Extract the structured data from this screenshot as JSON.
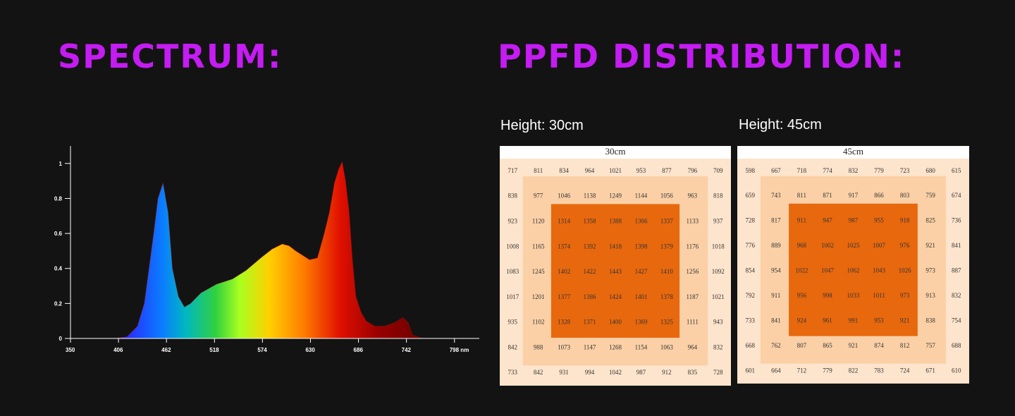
{
  "headings": [
    "SPECTRUM:",
    "PPFD DISTRIBUTION:"
  ],
  "chart_data": {
    "type": "area",
    "x": [
      350,
      400,
      416,
      428,
      436,
      447,
      452,
      458,
      464,
      469,
      476,
      483,
      490,
      502,
      520,
      539,
      555,
      572,
      585,
      597,
      605,
      613,
      629,
      638,
      646,
      652,
      658,
      663,
      667,
      671,
      675,
      679,
      683,
      689,
      695,
      705,
      716,
      728,
      738,
      744,
      749,
      755,
      761,
      798
    ],
    "values": [
      0,
      0,
      0.01,
      0.07,
      0.2,
      0.6,
      0.8,
      0.89,
      0.72,
      0.4,
      0.24,
      0.18,
      0.2,
      0.26,
      0.31,
      0.34,
      0.39,
      0.46,
      0.51,
      0.54,
      0.53,
      0.5,
      0.45,
      0.46,
      0.6,
      0.72,
      0.89,
      0.97,
      1.01,
      0.9,
      0.73,
      0.45,
      0.24,
      0.15,
      0.1,
      0.07,
      0.07,
      0.09,
      0.12,
      0.09,
      0.02,
      0.01,
      0,
      0
    ],
    "xlim": [
      350,
      827
    ],
    "ylim": [
      0,
      1.1
    ],
    "xticks": [
      350,
      406,
      462,
      518,
      574,
      630,
      686,
      742,
      {
        "value": 798,
        "label": "798 nm"
      }
    ],
    "yticks": [
      0,
      0.2,
      0.4,
      0.6,
      0.8,
      1
    ]
  },
  "tables": [
    {
      "title": "Height: 30cm",
      "caption": "30cm",
      "rows": [
        [
          717,
          811,
          834,
          964,
          1021,
          953,
          877,
          796,
          709
        ],
        [
          838,
          977,
          1046,
          1138,
          1249,
          1144,
          1056,
          963,
          818
        ],
        [
          923,
          1120,
          1314,
          1358,
          1388,
          1366,
          1337,
          1133,
          937
        ],
        [
          1008,
          1165,
          1374,
          1392,
          1418,
          1398,
          1379,
          1176,
          1018
        ],
        [
          1083,
          1245,
          1402,
          1422,
          1443,
          1427,
          1410,
          1256,
          1092
        ],
        [
          1017,
          1201,
          1377,
          1386,
          1424,
          1401,
          1378,
          1187,
          1021
        ],
        [
          935,
          1102,
          1328,
          1371,
          1400,
          1369,
          1325,
          1111,
          943
        ],
        [
          842,
          988,
          1073,
          1147,
          1268,
          1154,
          1063,
          964,
          832
        ],
        [
          733,
          842,
          931,
          994,
          1042,
          987,
          912,
          835,
          728
        ]
      ]
    },
    {
      "title": "Height: 45cm",
      "caption": "45cm",
      "rows": [
        [
          598,
          667,
          718,
          774,
          832,
          779,
          723,
          680,
          615
        ],
        [
          659,
          743,
          811,
          871,
          917,
          866,
          803,
          759,
          674
        ],
        [
          728,
          817,
          911,
          947,
          987,
          955,
          918,
          825,
          736
        ],
        [
          776,
          889,
          968,
          1002,
          1025,
          1007,
          976,
          921,
          841
        ],
        [
          854,
          954,
          1022,
          1047,
          1062,
          1043,
          1026,
          973,
          887
        ],
        [
          792,
          911,
          956,
          998,
          1033,
          1011,
          973,
          913,
          832
        ],
        [
          733,
          841,
          924,
          961,
          991,
          953,
          921,
          838,
          754
        ],
        [
          668,
          762,
          807,
          865,
          921,
          874,
          812,
          757,
          688
        ],
        [
          601,
          664,
          712,
          779,
          822,
          783,
          724,
          671,
          610
        ]
      ]
    }
  ]
}
